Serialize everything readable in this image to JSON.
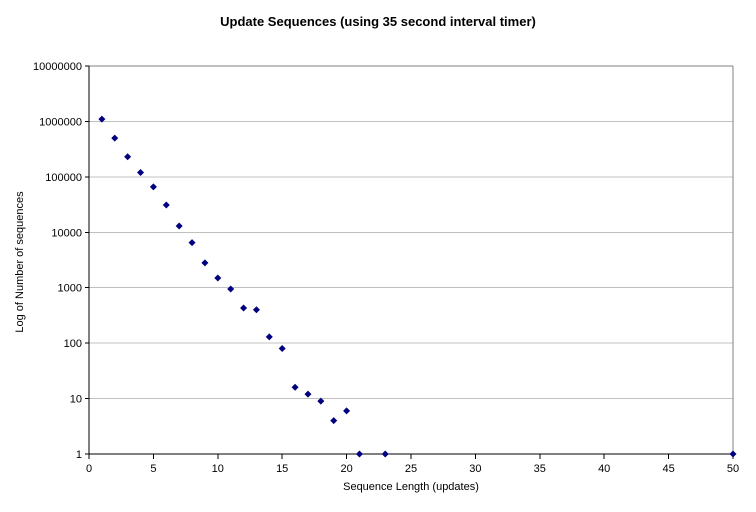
{
  "chart_data": {
    "type": "scatter",
    "title": "Update Sequences (using 35 second interval timer)",
    "xlabel": "Sequence Length (updates)",
    "ylabel": "Log of Number of sequences",
    "y_scale": "log",
    "xlim": [
      0,
      50
    ],
    "ylim": [
      1,
      10000000
    ],
    "x_ticks": [
      0,
      5,
      10,
      15,
      20,
      25,
      30,
      35,
      40,
      45,
      50
    ],
    "y_ticks": [
      1,
      10,
      100,
      1000,
      10000,
      100000,
      1000000,
      10000000
    ],
    "grid": "horizontal",
    "legend": "none",
    "marker": {
      "shape": "diamond",
      "color": "#000080",
      "size": 7
    },
    "colors": {
      "background": "#ffffff",
      "gridline": "#c0c0c0",
      "plot_border": "#808080",
      "axis": "#000000",
      "text": "#000000"
    },
    "points": [
      {
        "x": 1,
        "y": 1100000
      },
      {
        "x": 2,
        "y": 500000
      },
      {
        "x": 3,
        "y": 230000
      },
      {
        "x": 4,
        "y": 120000
      },
      {
        "x": 5,
        "y": 66000
      },
      {
        "x": 6,
        "y": 31000
      },
      {
        "x": 7,
        "y": 13000
      },
      {
        "x": 8,
        "y": 6500
      },
      {
        "x": 9,
        "y": 2800
      },
      {
        "x": 10,
        "y": 1500
      },
      {
        "x": 11,
        "y": 950
      },
      {
        "x": 12,
        "y": 430
      },
      {
        "x": 13,
        "y": 400
      },
      {
        "x": 14,
        "y": 130
      },
      {
        "x": 15,
        "y": 80
      },
      {
        "x": 16,
        "y": 16
      },
      {
        "x": 17,
        "y": 12
      },
      {
        "x": 18,
        "y": 9
      },
      {
        "x": 19,
        "y": 4
      },
      {
        "x": 20,
        "y": 6
      },
      {
        "x": 21,
        "y": 1
      },
      {
        "x": 23,
        "y": 1
      },
      {
        "x": 50,
        "y": 1
      }
    ]
  }
}
